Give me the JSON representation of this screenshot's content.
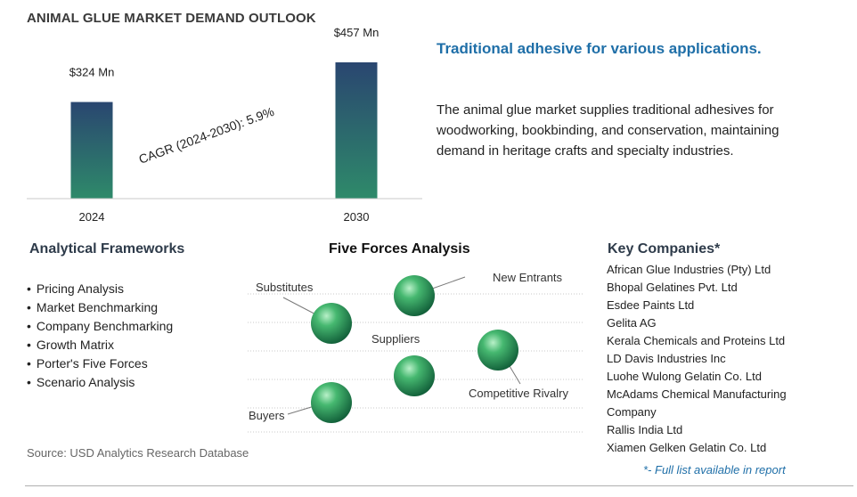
{
  "title": "ANIMAL GLUE MARKET DEMAND OUTLOOK",
  "headline": "Traditional adhesive for various applications.",
  "description": "The animal glue market supplies traditional adhesives for woodworking, bookbinding, and conservation, maintaining demand in heritage crafts and specialty industries.",
  "chart_data": {
    "type": "bar",
    "categories": [
      "2024",
      "2030"
    ],
    "values": [
      324,
      457
    ],
    "value_labels": [
      "$324 Mn",
      "$457 Mn"
    ],
    "cagr_label": "CAGR (2024-2030):  5.9%",
    "bar_color_top": "#2a4670",
    "bar_color_bottom": "#2e8a6a",
    "grid": false
  },
  "frameworks": {
    "title": "Analytical Frameworks",
    "items": [
      "Pricing Analysis",
      "Market Benchmarking",
      "Company Benchmarking",
      "Growth Matrix",
      "Porter's Five Forces",
      "Scenario Analysis"
    ]
  },
  "five_forces": {
    "title": "Five Forces Analysis",
    "labels": {
      "substitutes": "Substitutes",
      "new_entrants": "New Entrants",
      "suppliers": "Suppliers",
      "competitive_rivalry": "Competitive Rivalry",
      "buyers": "Buyers"
    },
    "sphere_color": "#2f9a54"
  },
  "key_companies": {
    "title": "Key Companies*",
    "items": [
      "African Glue Industries (Pty) Ltd",
      "Bhopal Gelatines Pvt. Ltd",
      "Esdee Paints Ltd",
      "Gelita AG",
      "Kerala Chemicals and Proteins Ltd",
      "LD Davis Industries Inc",
      "Luohe Wulong Gelatin Co. Ltd",
      "McAdams Chemical Manufacturing Company",
      "Rallis India Ltd",
      "Xiamen Gelken Gelatin Co. Ltd"
    ],
    "note": "*- Full list available in report"
  },
  "source": "Source: USD Analytics Research Database"
}
